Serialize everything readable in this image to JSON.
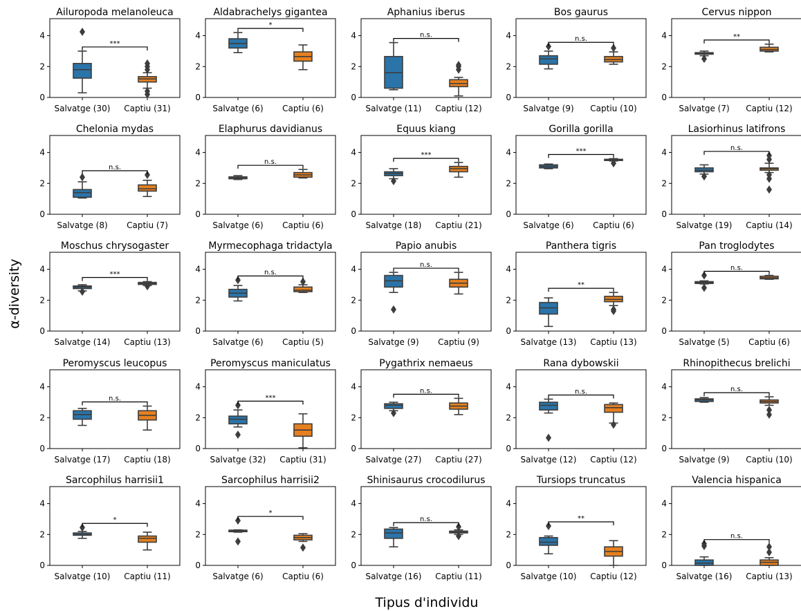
{
  "chart_data": {
    "type": "box",
    "xlabel": "Tipus d'individu",
    "ylabel": "α-diversity",
    "ylim": [
      0,
      5.1
    ],
    "yticks": [
      0,
      2,
      4
    ],
    "colors": {
      "Salvatge": "#2a74a9",
      "Captiu": "#e6801f",
      "line": "#3d3d3d"
    },
    "panels": [
      {
        "title": "Ailuropoda melanoleuca",
        "sig": "***",
        "wild": {
          "label": "Salvatge (30)",
          "box": [
            0.3,
            1.25,
            1.8,
            2.2,
            3.0
          ],
          "out": [
            4.25
          ]
        },
        "captive": {
          "label": "Captiu (31)",
          "box": [
            0.6,
            1.0,
            1.2,
            1.35,
            1.6
          ],
          "out": [
            0.2,
            0.4,
            1.8,
            2.0,
            2.2
          ]
        }
      },
      {
        "title": "Aldabrachelys gigantea",
        "sig": "*",
        "wild": {
          "label": "Salvatge (6)",
          "box": [
            2.9,
            3.2,
            3.5,
            3.8,
            4.2
          ],
          "out": []
        },
        "captive": {
          "label": "Captiu (6)",
          "box": [
            1.8,
            2.35,
            2.65,
            2.95,
            3.4
          ],
          "out": []
        }
      },
      {
        "title": "Aphanius iberus",
        "sig": "n.s.",
        "wild": {
          "label": "Salvatge (11)",
          "box": [
            0.5,
            0.6,
            1.6,
            2.65,
            3.55
          ],
          "out": []
        },
        "captive": {
          "label": "Captiu (12)",
          "box": [
            0.1,
            0.7,
            0.9,
            1.15,
            1.3
          ],
          "out": [
            1.8,
            2.0,
            2.1
          ]
        }
      },
      {
        "title": "Bos gaurus",
        "sig": "n.s.",
        "wild": {
          "label": "Salvatge (9)",
          "box": [
            1.85,
            2.15,
            2.5,
            2.7,
            3.0
          ],
          "out": [
            3.3
          ]
        },
        "captive": {
          "label": "Captiu (10)",
          "box": [
            2.15,
            2.3,
            2.45,
            2.65,
            2.95
          ],
          "out": [
            3.2
          ]
        }
      },
      {
        "title": "Cervus nippon",
        "sig": "**",
        "wild": {
          "label": "Salvatge (7)",
          "box": [
            2.7,
            2.8,
            2.85,
            2.9,
            3.0
          ],
          "out": [
            2.5
          ]
        },
        "captive": {
          "label": "Captiu (12)",
          "box": [
            2.95,
            3.0,
            3.1,
            3.25,
            3.45
          ],
          "out": []
        }
      },
      {
        "title": "Chelonia mydas",
        "sig": "n.s.",
        "wild": {
          "label": "Salvatge (8)",
          "box": [
            1.05,
            1.1,
            1.4,
            1.6,
            2.1
          ],
          "out": [
            2.4
          ]
        },
        "captive": {
          "label": "Captiu (7)",
          "box": [
            1.15,
            1.5,
            1.65,
            1.9,
            2.2
          ],
          "out": [
            2.55
          ]
        }
      },
      {
        "title": "Elaphurus davidianus",
        "sig": "n.s.",
        "wild": {
          "label": "Salvatge (6)",
          "box": [
            2.25,
            2.3,
            2.35,
            2.42,
            2.5
          ],
          "out": []
        },
        "captive": {
          "label": "Captiu (6)",
          "box": [
            2.35,
            2.4,
            2.55,
            2.7,
            2.9
          ],
          "out": []
        }
      },
      {
        "title": "Equus kiang",
        "sig": "***",
        "wild": {
          "label": "Salvatge (18)",
          "box": [
            2.3,
            2.5,
            2.65,
            2.75,
            2.95
          ],
          "out": [
            2.15
          ]
        },
        "captive": {
          "label": "Captiu (21)",
          "box": [
            2.4,
            2.75,
            2.95,
            3.1,
            3.35
          ],
          "out": []
        }
      },
      {
        "title": "Gorilla gorilla",
        "sig": "***",
        "wild": {
          "label": "Salvatge (6)",
          "box": [
            2.95,
            3.0,
            3.1,
            3.2,
            3.25
          ],
          "out": []
        },
        "captive": {
          "label": "Captiu (6)",
          "box": [
            3.45,
            3.48,
            3.52,
            3.56,
            3.6
          ],
          "out": [
            3.3
          ]
        }
      },
      {
        "title": "Lasiorhinus latifrons",
        "sig": "n.s.",
        "wild": {
          "label": "Salvatge (19)",
          "box": [
            2.6,
            2.75,
            2.85,
            3.0,
            3.2
          ],
          "out": [
            2.45
          ]
        },
        "captive": {
          "label": "Captiu (14)",
          "box": [
            2.7,
            2.85,
            2.95,
            3.0,
            3.3
          ],
          "out": [
            1.6,
            2.3,
            2.55,
            3.55,
            3.8
          ]
        }
      },
      {
        "title": "Moschus chrysogaster",
        "sig": "***",
        "wild": {
          "label": "Salvatge (14)",
          "box": [
            2.6,
            2.75,
            2.85,
            2.92,
            3.0
          ],
          "out": [
            2.55
          ]
        },
        "captive": {
          "label": "Captiu (13)",
          "box": [
            2.95,
            3.02,
            3.08,
            3.15,
            3.2
          ],
          "out": [
            2.9
          ]
        }
      },
      {
        "title": "Myrmecophaga tridactyla",
        "sig": "n.s.",
        "wild": {
          "label": "Salvatge (6)",
          "box": [
            1.95,
            2.2,
            2.45,
            2.7,
            2.95
          ],
          "out": [
            3.3
          ]
        },
        "captive": {
          "label": "Captiu (5)",
          "box": [
            2.5,
            2.55,
            2.65,
            2.85,
            3.0
          ],
          "out": [
            3.2
          ]
        }
      },
      {
        "title": "Papio anubis",
        "sig": "n.s.",
        "wild": {
          "label": "Salvatge (9)",
          "box": [
            2.5,
            2.85,
            3.25,
            3.6,
            3.8
          ],
          "out": [
            1.4
          ]
        },
        "captive": {
          "label": "Captiu (9)",
          "box": [
            2.4,
            2.85,
            3.1,
            3.35,
            3.8
          ],
          "out": []
        }
      },
      {
        "title": "Panthera tigris",
        "sig": "**",
        "wild": {
          "label": "Salvatge (13)",
          "box": [
            0.3,
            1.1,
            1.5,
            1.85,
            2.15
          ],
          "out": []
        },
        "captive": {
          "label": "Captiu (13)",
          "box": [
            1.65,
            1.9,
            2.05,
            2.25,
            2.5
          ],
          "out": [
            1.3,
            1.4
          ]
        }
      },
      {
        "title": "Pan troglodytes",
        "sig": "n.s.",
        "wild": {
          "label": "Salvatge (5)",
          "box": [
            3.05,
            3.08,
            3.15,
            3.2,
            3.25
          ],
          "out": [
            2.8,
            3.6
          ]
        },
        "captive": {
          "label": "Captiu (6)",
          "box": [
            3.35,
            3.38,
            3.45,
            3.55,
            3.6
          ],
          "out": []
        }
      },
      {
        "title": "Peromyscus leucopus",
        "sig": "n.s.",
        "wild": {
          "label": "Salvatge (17)",
          "box": [
            1.5,
            1.9,
            2.2,
            2.45,
            2.6
          ],
          "out": []
        },
        "captive": {
          "label": "Captiu (18)",
          "box": [
            1.2,
            1.85,
            2.15,
            2.45,
            2.75
          ],
          "out": []
        }
      },
      {
        "title": "Peromyscus maniculatus",
        "sig": "***",
        "wild": {
          "label": "Salvatge (32)",
          "box": [
            1.4,
            1.6,
            1.9,
            2.1,
            2.5
          ],
          "out": [
            0.9,
            2.8
          ]
        },
        "captive": {
          "label": "Captiu (31)",
          "box": [
            0.05,
            0.8,
            1.2,
            1.6,
            2.25
          ],
          "out": []
        }
      },
      {
        "title": "Pygathrix nemaeus",
        "sig": "n.s.",
        "wild": {
          "label": "Salvatge (27)",
          "box": [
            2.45,
            2.6,
            2.8,
            2.9,
            3.0
          ],
          "out": [
            2.3
          ]
        },
        "captive": {
          "label": "Captiu (27)",
          "box": [
            2.2,
            2.55,
            2.75,
            2.95,
            3.25
          ],
          "out": []
        }
      },
      {
        "title": "Rana dybowskii",
        "sig": "n.s.",
        "wild": {
          "label": "Salvatge (12)",
          "box": [
            2.3,
            2.5,
            2.8,
            3.0,
            3.2
          ],
          "out": [
            0.7
          ]
        },
        "captive": {
          "label": "Captiu (12)",
          "box": [
            1.65,
            2.35,
            2.65,
            2.85,
            2.95
          ],
          "out": [
            1.55
          ]
        }
      },
      {
        "title": "Rhinopithecus brelichi",
        "sig": "n.s.",
        "wild": {
          "label": "Salvatge (9)",
          "box": [
            3.0,
            3.05,
            3.15,
            3.22,
            3.3
          ],
          "out": []
        },
        "captive": {
          "label": "Captiu (10)",
          "box": [
            2.8,
            2.95,
            3.05,
            3.15,
            3.35
          ],
          "out": [
            2.2,
            2.5
          ]
        }
      },
      {
        "title": "Sarcophilus harrisii1",
        "sig": "*",
        "wild": {
          "label": "Salvatge (10)",
          "box": [
            1.75,
            1.95,
            2.0,
            2.1,
            2.2
          ],
          "out": [
            2.45
          ]
        },
        "captive": {
          "label": "Captiu (11)",
          "box": [
            1.0,
            1.5,
            1.75,
            1.9,
            2.15
          ],
          "out": []
        }
      },
      {
        "title": "Sarcophilus harrisii2",
        "sig": "*",
        "wild": {
          "label": "Salvatge (6)",
          "box": [
            2.15,
            2.18,
            2.22,
            2.28,
            2.3
          ],
          "out": [
            1.55,
            2.9
          ]
        },
        "captive": {
          "label": "Captiu (6)",
          "box": [
            1.55,
            1.65,
            1.8,
            1.95,
            2.05
          ],
          "out": [
            1.15
          ]
        }
      },
      {
        "title": "Shinisaurus crocodilurus",
        "sig": "n.s.",
        "wild": {
          "label": "Salvatge (16)",
          "box": [
            1.2,
            1.75,
            2.1,
            2.35,
            2.45
          ],
          "out": []
        },
        "captive": {
          "label": "Captiu (11)",
          "box": [
            2.0,
            2.1,
            2.15,
            2.22,
            2.3
          ],
          "out": [
            1.9,
            2.5
          ]
        }
      },
      {
        "title": "Tursiops truncatus",
        "sig": "**",
        "wild": {
          "label": "Salvatge (10)",
          "box": [
            0.75,
            1.3,
            1.5,
            1.8,
            1.9
          ],
          "out": [
            2.55
          ]
        },
        "captive": {
          "label": "Captiu (12)",
          "box": [
            0.0,
            0.6,
            0.9,
            1.2,
            1.6
          ],
          "out": []
        }
      },
      {
        "title": "Valencia hispanica",
        "sig": "n.s.",
        "wild": {
          "label": "Salvatge (16)",
          "box": [
            0.0,
            0.0,
            0.15,
            0.35,
            0.55
          ],
          "out": [
            1.25,
            1.4
          ]
        },
        "captive": {
          "label": "Captiu (13)",
          "box": [
            0.0,
            0.0,
            0.2,
            0.35,
            0.5
          ],
          "out": [
            0.85,
            1.2
          ]
        }
      }
    ]
  }
}
